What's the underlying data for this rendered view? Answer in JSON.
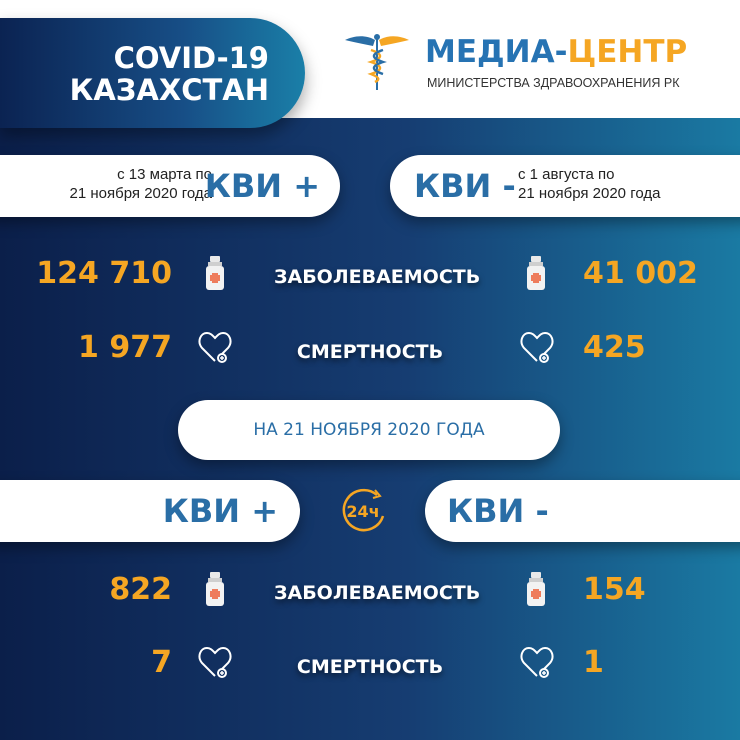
{
  "header": {
    "title_line1": "COVID-19",
    "title_line2": "КАЗАХСТАН"
  },
  "logo": {
    "title_part1": "МЕДИА-",
    "title_part2": "ЦЕНТР",
    "subtitle": "МИНИСТЕРСТВА ЗДРАВООХРАНЕНИЯ РК",
    "icon": "caduceus-icon"
  },
  "colors": {
    "accent_orange": "#f5a623",
    "brand_blue": "#2a6ea6",
    "bg_dark": "#0b1f4a",
    "bg_teal": "#1a7aa3"
  },
  "cumulative": {
    "positive": {
      "label": "КВИ +",
      "period_line1": "с 13 марта по",
      "period_line2": "21 ноября 2020 года",
      "cases": "124 710",
      "deaths": "1 977"
    },
    "negative": {
      "label": "КВИ -",
      "period_line1": "с 1 августа  по",
      "period_line2": "21 ноября 2020 года",
      "cases": "41 002",
      "deaths": "425"
    },
    "cases_label": "ЗАБОЛЕВАЕМОСТЬ",
    "deaths_label": "СМЕРТНОСТЬ"
  },
  "daily": {
    "date_label": "НА 21 НОЯБРЯ  2020 ГОДА",
    "badge": "24ч",
    "positive": {
      "label": "КВИ +",
      "cases": "822",
      "deaths": "7"
    },
    "negative": {
      "label": "КВИ -",
      "cases": "154",
      "deaths": "1"
    },
    "cases_label": "ЗАБОЛЕВАЕМОСТЬ",
    "deaths_label": "СМЕРТНОСТЬ"
  }
}
